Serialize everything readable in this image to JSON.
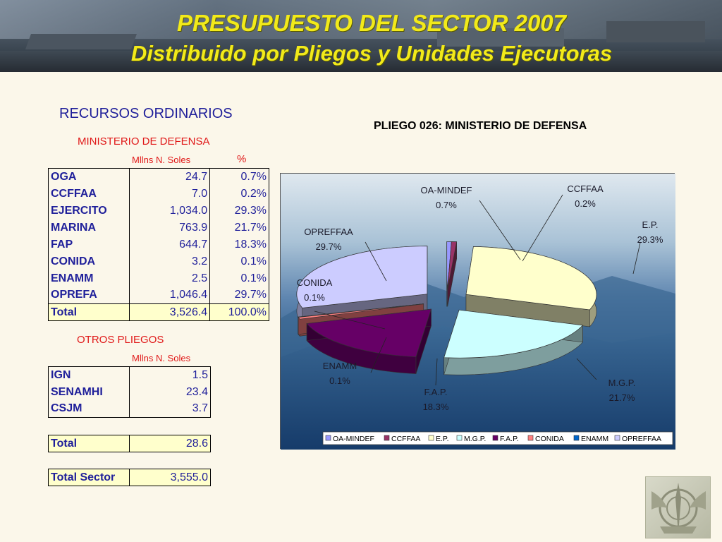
{
  "header": {
    "title": "PRESUPUESTO DEL SECTOR 2007",
    "subtitle": "Distribuido por Pliegos y Unidades Ejecutoras"
  },
  "section_title": "RECURSOS ORDINARIOS",
  "ministerio": {
    "title": "MINISTERIO DE DEFENSA",
    "col_amount": "Mllns N. Soles",
    "col_pct": "%",
    "rows": [
      {
        "name": "OGA",
        "amount": "24.7",
        "pct": "0.7%"
      },
      {
        "name": "CCFFAA",
        "amount": "7.0",
        "pct": "0.2%"
      },
      {
        "name": "EJERCITO",
        "amount": "1,034.0",
        "pct": "29.3%"
      },
      {
        "name": "MARINA",
        "amount": "763.9",
        "pct": "21.7%"
      },
      {
        "name": "FAP",
        "amount": "644.7",
        "pct": "18.3%"
      },
      {
        "name": "CONIDA",
        "amount": "3.2",
        "pct": "0.1%"
      },
      {
        "name": "ENAMM",
        "amount": "2.5",
        "pct": "0.1%"
      },
      {
        "name": "OPREFA",
        "amount": "1,046.4",
        "pct": "29.7%"
      }
    ],
    "total": {
      "name": "Total",
      "amount": "3,526.4",
      "pct": "100.0%"
    }
  },
  "otros": {
    "title": "OTROS PLIEGOS",
    "col_amount": "Mllns N. Soles",
    "rows": [
      {
        "name": "IGN",
        "amount": "1.5"
      },
      {
        "name": "SENAMHI",
        "amount": "23.4"
      },
      {
        "name": "CSJM",
        "amount": "3.7"
      }
    ],
    "total": {
      "name": "Total",
      "amount": "28.6"
    },
    "sector_total": {
      "name": "Total Sector",
      "amount": "3,555.0"
    }
  },
  "chart_data": {
    "type": "pie",
    "title": "PLIEGO 026: MINISTERIO DE DEFENSA",
    "legend_position": "bottom",
    "slices": [
      {
        "name": "OA-MINDEF",
        "label": "OA-MINDEF",
        "value": 0.7,
        "pct_label": "0.7%",
        "color": "#9999ff"
      },
      {
        "name": "CCFFAA",
        "label": "CCFFAA",
        "value": 0.2,
        "pct_label": "0.2%",
        "color": "#993366"
      },
      {
        "name": "E.P.",
        "label": "E.P.",
        "value": 29.3,
        "pct_label": "29.3%",
        "color": "#ffffcc"
      },
      {
        "name": "M.G.P.",
        "label": "M.G.P.",
        "value": 21.7,
        "pct_label": "21.7%",
        "color": "#ccffff"
      },
      {
        "name": "F.A.P.",
        "label": "F.A.P.",
        "value": 18.3,
        "pct_label": "18.3%",
        "color": "#660066"
      },
      {
        "name": "CONIDA",
        "label": "CONIDA",
        "value": 0.1,
        "pct_label": "0.1%",
        "color": "#ff8080"
      },
      {
        "name": "ENAMM",
        "label": "ENAMM",
        "value": 0.1,
        "pct_label": "0.1%",
        "color": "#0066cc"
      },
      {
        "name": "OPREFFAA",
        "label": "OPREFFAA",
        "value": 29.7,
        "pct_label": "29.7%",
        "color": "#ccccff"
      }
    ]
  }
}
